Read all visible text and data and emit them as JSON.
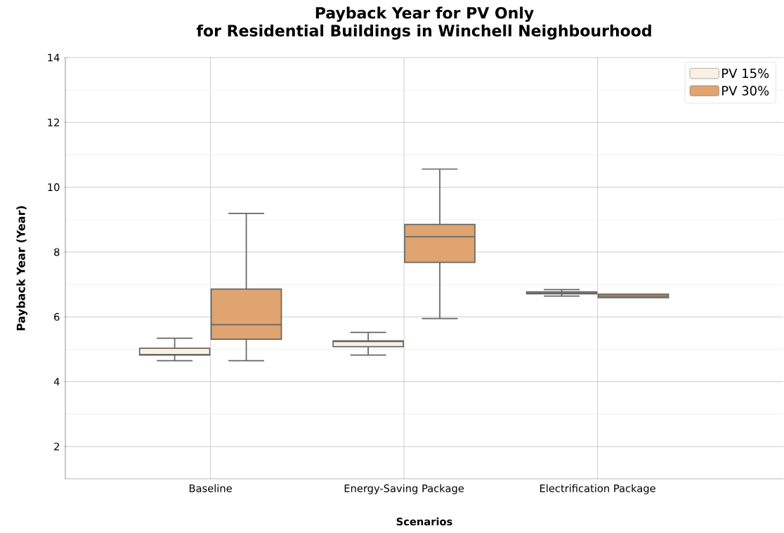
{
  "chart_data": {
    "type": "box",
    "title": "Payback Year for PV Only\nfor Residential Buildings in Winchell Neighbourhood",
    "xlabel": "Scenarios",
    "ylabel": "Payback Year (Year)",
    "categories": [
      "Baseline",
      "Energy-Saving Package",
      "Electrification Package"
    ],
    "series": [
      {
        "name": "PV 15%",
        "color": "#fcf0e5",
        "boxes": [
          {
            "low": 4.65,
            "q1": 4.82,
            "median": 4.84,
            "q3": 5.03,
            "high": 5.34
          },
          {
            "low": 4.82,
            "q1": 5.08,
            "median": 5.24,
            "q3": 5.26,
            "high": 5.52
          },
          {
            "low": 6.64,
            "q1": 6.71,
            "median": 6.74,
            "q3": 6.77,
            "high": 6.84
          }
        ]
      },
      {
        "name": "PV 30%",
        "color": "#e0a470",
        "boxes": [
          {
            "low": 4.65,
            "q1": 5.31,
            "median": 5.76,
            "q3": 6.86,
            "high": 9.19
          },
          {
            "low": 5.95,
            "q1": 7.68,
            "median": 8.47,
            "q3": 8.85,
            "high": 10.56
          },
          {
            "low": 6.64,
            "q1": 6.59,
            "median": 6.64,
            "q3": 6.7,
            "high": 6.66
          }
        ]
      }
    ],
    "ylim": [
      1,
      14
    ],
    "yticks": [
      2,
      4,
      6,
      8,
      10,
      12,
      14
    ],
    "grid": true,
    "legend": "top right"
  }
}
